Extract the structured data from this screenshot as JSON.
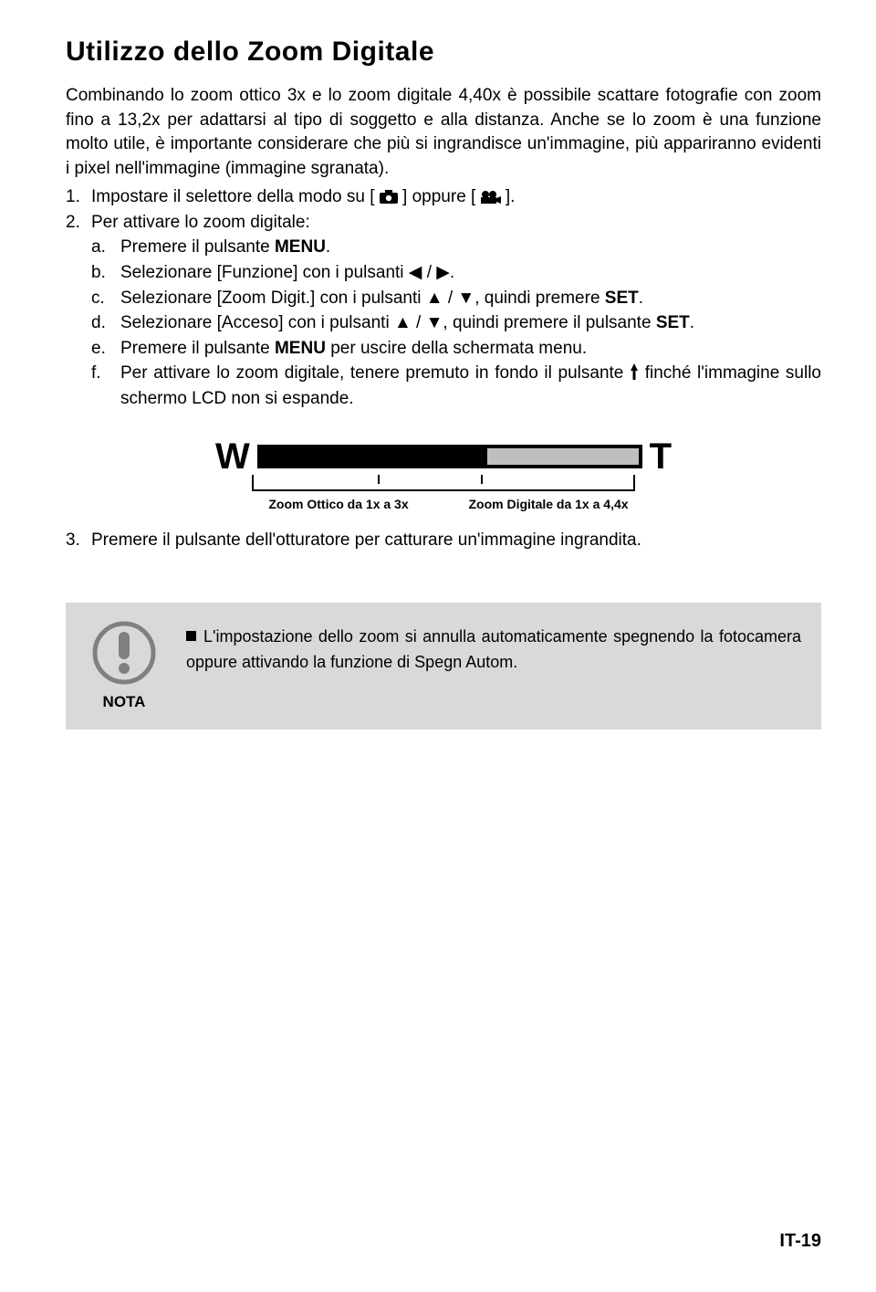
{
  "title": "Utilizzo dello Zoom Digitale",
  "intro": "Combinando lo zoom ottico 3x e lo zoom digitale 4,40x è possibile scattare fotografie con zoom fino a 13,2x per adattarsi al tipo di soggetto e alla distanza. Anche se lo zoom è una funzione molto utile, è importante considerare che più si ingrandisce un'immagine, più appariranno evidenti i pixel nell'immagine (immagine sgranata).",
  "step1_pre": "Impostare il selettore della modo su [ ",
  "step1_mid": " ] oppure [ ",
  "step1_post": " ].",
  "step2": "Per attivare lo zoom digitale:",
  "step2a_pre": "Premere il pulsante ",
  "step2a_bold": "MENU",
  "step2a_post": ".",
  "step2b": "Selezionare [Funzione] con i pulsanti ◀ / ▶.",
  "step2c_pre": "Selezionare [Zoom Digit.] con i pulsanti ▲ / ▼, quindi premere ",
  "step2c_bold": "SET",
  "step2c_post": ".",
  "step2d_pre": "Selezionare [Acceso] con i pulsanti ▲ / ▼, quindi premere il pulsante ",
  "step2d_bold": "SET",
  "step2d_post": ".",
  "step2e_pre": "Premere il pulsante ",
  "step2e_bold": "MENU",
  "step2e_post": " per uscire della schermata menu.",
  "step2f_pre": "Per attivare lo zoom digitale, tenere premuto in fondo il pulsante ",
  "step2f_post": " finché l'immagine sullo schermo LCD non si espande.",
  "step3": "Premere il pulsante dell'otturatore per catturare un'immagine ingrandita.",
  "zoom": {
    "left_letter": "W",
    "right_letter": "T",
    "fill_ratio": 0.6,
    "ticks": [
      0.33,
      0.6
    ],
    "label_left": "Zoom Ottico da 1x a 3x",
    "label_right": "Zoom Digitale da 1x a 4,4x",
    "bar_fill_color": "#000000",
    "bar_empty_color": "#bfbfbf",
    "bar_border_color": "#000000"
  },
  "note": {
    "label": "NOTA",
    "text": "L'impostazione dello zoom si annulla automaticamente spegnendo la fotocamera oppure attivando la funzione di Spegn Autom.",
    "box_bg": "#d9d9d9"
  },
  "page_number": "IT-19"
}
